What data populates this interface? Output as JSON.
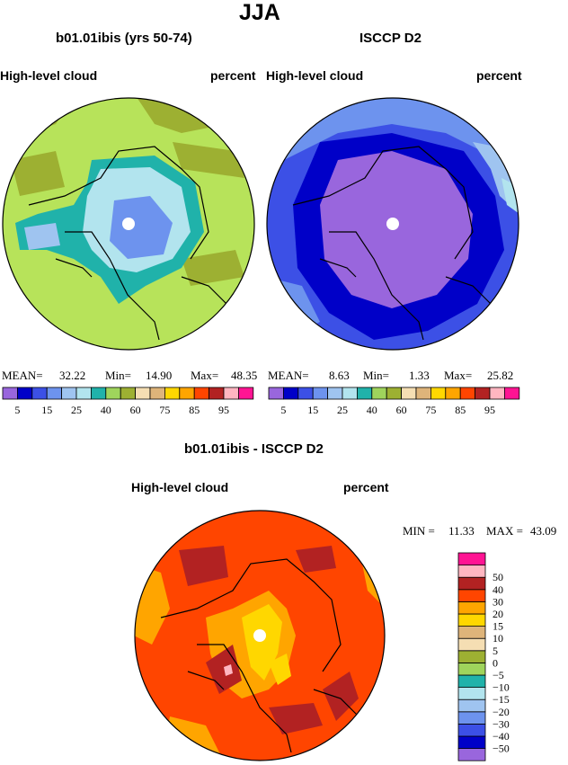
{
  "page": {
    "title": "JJA"
  },
  "panel_left": {
    "title": "b01.01ibis (yrs 50-74)",
    "field": "High-level cloud",
    "units": "percent",
    "stats": {
      "mean_label": "MEAN=",
      "mean": "32.22",
      "min_label": "Min=",
      "min": "14.90",
      "max_label": "Max=",
      "max": "48.35"
    }
  },
  "panel_right": {
    "title": "ISCCP D2",
    "field": "High-level cloud",
    "units": "percent",
    "stats": {
      "mean_label": "MEAN=",
      "mean": "8.63",
      "min_label": "Min=",
      "min": "1.33",
      "max_label": "Max=",
      "max": "25.82"
    }
  },
  "panel_diff": {
    "title": "b01.01ibis - ISCCP D2",
    "field": "High-level cloud",
    "units": "percent",
    "stats": {
      "min_label": "MIN =",
      "min": "11.33",
      "max_label": "MAX =",
      "max": "43.09"
    }
  },
  "colorbar_abs": {
    "colors": [
      "#9966dd",
      "#0000c8",
      "#3c50e6",
      "#6d93ee",
      "#9fc4f0",
      "#b2e4ee",
      "#20b2aa",
      "#9fd45c",
      "#9db032",
      "#f5deb3",
      "#deb47a",
      "#ffd700",
      "#ffa500",
      "#ff4500",
      "#b22222",
      "#ffb6c1",
      "#ff1493"
    ],
    "labels": [
      "5",
      "15",
      "25",
      "40",
      "60",
      "75",
      "85",
      "95"
    ]
  },
  "colorbar_diff": {
    "colors": [
      "#9966dd",
      "#0000c8",
      "#3c50e6",
      "#6d93ee",
      "#9fc4f0",
      "#b2e4ee",
      "#20b2aa",
      "#9fd45c",
      "#9db032",
      "#f5deb3",
      "#deb47a",
      "#ffd700",
      "#ffa500",
      "#ff4500",
      "#b22222",
      "#ffb6c1",
      "#ff1493"
    ],
    "labels": [
      "−50",
      "−40",
      "−30",
      "−20",
      "−15",
      "−10",
      "−5",
      "0",
      "5",
      "10",
      "15",
      "20",
      "30",
      "40",
      "50"
    ]
  }
}
